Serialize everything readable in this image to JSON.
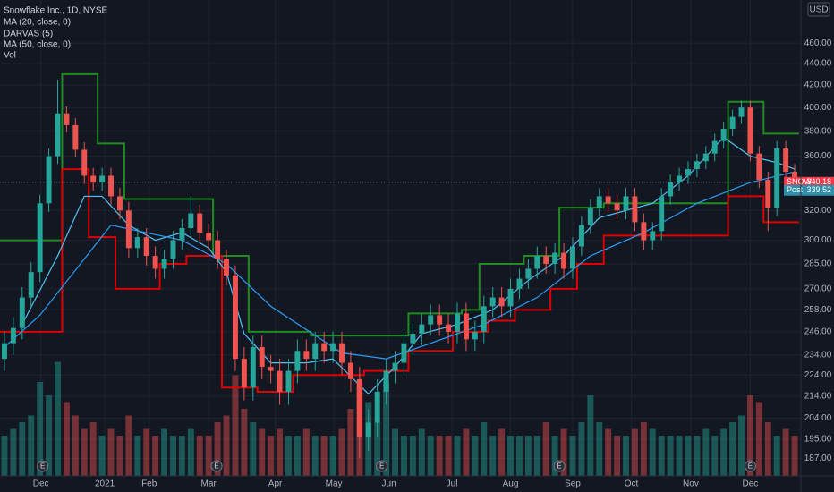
{
  "chart_data": {
    "type": "candlestick",
    "title": "Snowflake Inc., 1D, NYSE",
    "currency": "USD",
    "yscale": "log",
    "ylim": [
      180,
      505
    ],
    "yticks": [
      {
        "value": 187,
        "label": "187.00"
      },
      {
        "value": 195,
        "label": "195.00"
      },
      {
        "value": 204,
        "label": "204.00"
      },
      {
        "value": 214,
        "label": "214.00"
      },
      {
        "value": 224,
        "label": "224.00"
      },
      {
        "value": 234,
        "label": "234.00"
      },
      {
        "value": 246,
        "label": "246.00"
      },
      {
        "value": 258,
        "label": "258.00"
      },
      {
        "value": 270,
        "label": "270.00"
      },
      {
        "value": 285,
        "label": "285.00"
      },
      {
        "value": 300,
        "label": "300.00"
      },
      {
        "value": 320,
        "label": "320.00"
      },
      {
        "value": 340,
        "label": "340.00"
      },
      {
        "value": 360,
        "label": "360.00"
      },
      {
        "value": 380,
        "label": "380.00"
      },
      {
        "value": 400,
        "label": "400.00"
      },
      {
        "value": 420,
        "label": "420.00"
      },
      {
        "value": 440,
        "label": "440.00"
      },
      {
        "value": 460,
        "label": "460.00"
      }
    ],
    "xlim": [
      -0.5,
      89.5
    ],
    "xticks": [
      {
        "value": 4.1,
        "label": "Dec"
      },
      {
        "value": 11.3,
        "label": "2021"
      },
      {
        "value": 16.3,
        "label": "Feb"
      },
      {
        "value": 23,
        "label": "Mar"
      },
      {
        "value": 30.5,
        "label": "Apr"
      },
      {
        "value": 37.1,
        "label": "May"
      },
      {
        "value": 43.3,
        "label": "Jun"
      },
      {
        "value": 50.4,
        "label": "Jul"
      },
      {
        "value": 57,
        "label": "Aug"
      },
      {
        "value": 64,
        "label": "Sep"
      },
      {
        "value": 70.6,
        "label": "Oct"
      },
      {
        "value": 77.3,
        "label": "Nov"
      },
      {
        "value": 84,
        "label": "Dec"
      }
    ],
    "grid": true,
    "up_color": "#26a69a",
    "down_color": "#ef5350",
    "open": [
      232,
      240,
      248,
      265,
      280,
      325,
      360,
      395,
      385,
      365,
      345,
      340,
      345,
      330,
      320,
      295,
      302,
      290,
      282,
      288,
      300,
      308,
      318,
      305,
      300,
      288,
      278,
      232,
      218,
      238,
      228,
      226,
      216,
      226,
      236,
      232,
      240,
      236,
      240,
      230,
      222,
      196,
      202,
      216,
      226,
      230,
      240,
      245,
      250,
      255,
      250,
      246,
      256,
      242,
      246,
      260,
      265,
      260,
      270,
      276,
      282,
      290,
      285,
      292,
      282,
      296,
      310,
      322,
      330,
      325,
      320,
      330,
      312,
      300,
      306,
      330,
      340,
      345,
      350,
      356,
      362,
      372,
      382,
      392,
      400,
      362,
      342,
      322,
      366,
      348
    ],
    "high": [
      246,
      254,
      271,
      286,
      331,
      366,
      425,
      401,
      391,
      371,
      351,
      351,
      351,
      336,
      326,
      308,
      308,
      296,
      294,
      306,
      314,
      330,
      324,
      311,
      306,
      294,
      284,
      238,
      244,
      244,
      234,
      232,
      232,
      242,
      242,
      246,
      246,
      246,
      246,
      236,
      228,
      208,
      222,
      232,
      236,
      246,
      251,
      256,
      261,
      261,
      256,
      262,
      262,
      252,
      266,
      271,
      271,
      276,
      282,
      288,
      296,
      296,
      298,
      298,
      302,
      316,
      328,
      336,
      336,
      331,
      336,
      336,
      318,
      312,
      336,
      346,
      351,
      356,
      362,
      368,
      378,
      388,
      398,
      406,
      406,
      368,
      348,
      372,
      372,
      354
    ],
    "low": [
      226,
      234,
      242,
      259,
      274,
      319,
      354,
      379,
      359,
      339,
      334,
      334,
      324,
      314,
      289,
      289,
      284,
      276,
      276,
      282,
      294,
      302,
      299,
      294,
      282,
      272,
      226,
      212,
      212,
      222,
      220,
      210,
      210,
      220,
      226,
      226,
      230,
      230,
      224,
      216,
      187,
      190,
      196,
      210,
      220,
      224,
      234,
      239,
      244,
      244,
      240,
      240,
      236,
      236,
      240,
      254,
      254,
      254,
      264,
      270,
      276,
      279,
      279,
      276,
      276,
      290,
      304,
      316,
      319,
      314,
      314,
      306,
      294,
      294,
      300,
      324,
      334,
      339,
      344,
      350,
      356,
      366,
      376,
      386,
      356,
      336,
      306,
      316,
      342,
      334
    ],
    "close": [
      240,
      248,
      265,
      280,
      325,
      360,
      395,
      385,
      365,
      345,
      340,
      345,
      330,
      320,
      295,
      302,
      290,
      282,
      288,
      300,
      308,
      318,
      305,
      300,
      288,
      278,
      232,
      218,
      238,
      228,
      226,
      216,
      226,
      236,
      232,
      240,
      236,
      240,
      230,
      222,
      196,
      202,
      216,
      226,
      230,
      240,
      245,
      250,
      255,
      250,
      246,
      256,
      242,
      246,
      260,
      265,
      260,
      270,
      276,
      282,
      290,
      285,
      292,
      282,
      296,
      310,
      322,
      330,
      325,
      320,
      330,
      312,
      300,
      306,
      330,
      340,
      345,
      350,
      356,
      362,
      372,
      382,
      392,
      400,
      362,
      342,
      322,
      366,
      348,
      340.18
    ],
    "volume": {
      "name": "Vol",
      "vlim": [
        0,
        100
      ],
      "values": [
        30,
        35,
        40,
        45,
        70,
        60,
        85,
        55,
        45,
        35,
        40,
        30,
        35,
        30,
        45,
        30,
        35,
        30,
        35,
        30,
        30,
        35,
        30,
        30,
        40,
        45,
        75,
        50,
        40,
        35,
        30,
        35,
        30,
        30,
        35,
        30,
        30,
        30,
        35,
        50,
        70,
        55,
        40,
        70,
        35,
        30,
        30,
        35,
        30,
        30,
        30,
        30,
        35,
        30,
        40,
        30,
        35,
        30,
        30,
        30,
        30,
        40,
        30,
        35,
        30,
        40,
        60,
        40,
        35,
        30,
        30,
        35,
        40,
        35,
        30,
        30,
        30,
        30,
        30,
        35,
        30,
        35,
        40,
        45,
        60,
        55,
        40,
        30,
        35,
        30
      ]
    },
    "ma20": {
      "name": "MA (20, close, 0)",
      "color": "#4fc3f7",
      "x": [
        2,
        6,
        9,
        11,
        14,
        17,
        20,
        23,
        25,
        27,
        30,
        34,
        37,
        41,
        44,
        47,
        51,
        55,
        59,
        63,
        67,
        70,
        73,
        77,
        81,
        84,
        87,
        89
      ],
      "values": [
        250,
        290,
        330,
        330,
        310,
        300,
        305,
        295,
        280,
        245,
        230,
        230,
        232,
        215,
        228,
        245,
        250,
        258,
        275,
        290,
        315,
        320,
        325,
        345,
        375,
        360,
        355,
        350
      ]
    },
    "darvas": {
      "name": "DARVAS (5)",
      "top_color": "#1e8c1e",
      "bottom_color": "#e00000",
      "top": [
        300,
        300,
        300,
        300,
        300,
        300,
        300,
        430,
        430,
        430,
        430,
        370,
        370,
        370,
        328,
        328,
        328,
        328,
        328,
        328,
        328,
        328,
        328,
        328,
        290,
        290,
        290,
        290,
        246,
        246,
        246,
        246,
        246,
        246,
        246,
        244,
        244,
        244,
        244,
        244,
        244,
        244,
        244,
        244,
        244,
        244,
        256,
        256,
        256,
        256,
        256,
        256,
        258,
        258,
        285,
        285,
        285,
        285,
        285,
        290,
        290,
        290,
        290,
        322,
        322,
        322,
        322,
        322,
        325,
        325,
        325,
        325,
        325,
        325,
        325,
        325,
        325,
        325,
        325,
        325,
        325,
        325,
        405,
        405,
        405,
        405,
        378,
        378,
        378,
        378
      ],
      "bottom": [
        246,
        246,
        246,
        246,
        246,
        246,
        246,
        350,
        350,
        350,
        302,
        302,
        302,
        270,
        270,
        270,
        270,
        270,
        285,
        285,
        285,
        290,
        290,
        290,
        290,
        218,
        218,
        218,
        218,
        216,
        216,
        216,
        216,
        224,
        224,
        224,
        224,
        224,
        224,
        224,
        224,
        226,
        226,
        226,
        226,
        226,
        236,
        236,
        236,
        236,
        236,
        246,
        246,
        246,
        246,
        252,
        252,
        252,
        258,
        258,
        258,
        258,
        270,
        270,
        270,
        285,
        285,
        285,
        303,
        303,
        303,
        303,
        303,
        303,
        303,
        303,
        303,
        303,
        303,
        303,
        303,
        303,
        330,
        330,
        330,
        330,
        312,
        312,
        312,
        312
      ]
    },
    "ma50": {
      "name": "MA (50, close, 0)",
      "color": "#2a9df4",
      "x": [
        0,
        4,
        12,
        20,
        25,
        30,
        38,
        43,
        48,
        54,
        60,
        66,
        72,
        78,
        84,
        89
      ],
      "values": [
        238,
        255,
        310,
        300,
        285,
        260,
        235,
        232,
        240,
        250,
        265,
        290,
        305,
        325,
        340,
        348
      ]
    },
    "price_labels": [
      {
        "label": "SNOW",
        "value": 340.18,
        "color": "#f23645"
      },
      {
        "label": "Post",
        "value": 339.52,
        "color": "#2f8fa8"
      }
    ],
    "earnings": [
      {
        "label": "E",
        "x": 4.3
      },
      {
        "label": "E",
        "x": 23.9
      },
      {
        "label": "E",
        "x": 42.5
      },
      {
        "label": "E",
        "x": 62.5
      },
      {
        "label": "E",
        "x": 84
      }
    ]
  }
}
